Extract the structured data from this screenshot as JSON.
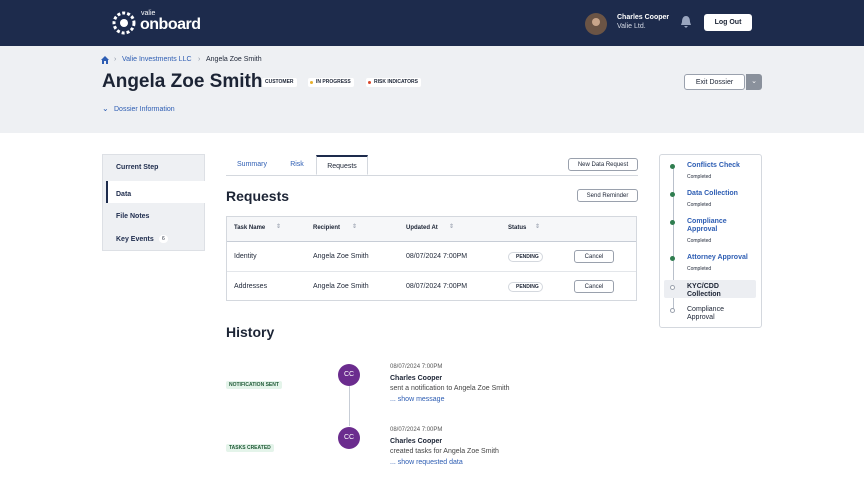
{
  "header": {
    "brand_small": "valie",
    "brand": "onboard",
    "user_name": "Charles Cooper",
    "user_org": "Valie Ltd.",
    "logout": "Log Out"
  },
  "breadcrumb": [
    "Valie Investments LLC",
    "Angela Zoe Smith"
  ],
  "title": "Angela Zoe Smith",
  "tags": [
    "CUSTOMER",
    "IN PROGRESS",
    "RISK INDICATORS"
  ],
  "exit": "Exit Dossier",
  "dossier_info": "Dossier Information",
  "side_nav": [
    {
      "label": "Current Step"
    },
    {
      "label": "Data"
    },
    {
      "label": "File Notes"
    },
    {
      "label": "Key Events",
      "count": 6
    }
  ],
  "tabs": [
    "Summary",
    "Risk",
    "Requests"
  ],
  "new_request": "New Data Request",
  "requests": {
    "title": "Requests",
    "send_reminder": "Send Reminder",
    "columns": [
      "Task Name",
      "Recipient",
      "Updated At",
      "Status"
    ],
    "rows": [
      [
        "Identity",
        "Angela Zoe Smith",
        "08/07/2024 7:00PM",
        "PENDING",
        "Cancel"
      ],
      [
        "Addresses",
        "Angela Zoe Smith",
        "08/07/2024 7:00PM",
        "PENDING",
        "Cancel"
      ]
    ]
  },
  "history": {
    "title": "History",
    "events": [
      {
        "tag": "NOTIFICATION SENT",
        "initials": "CC",
        "time": "08/07/2024 7:00PM",
        "actor": "Charles Cooper",
        "text": "sent a notification to Angela Zoe Smith",
        "link": "... show message"
      },
      {
        "tag": "TASKS CREATED",
        "initials": "CC",
        "time": "08/07/2024 7:00PM",
        "actor": "Charles Cooper",
        "text": "created tasks for Angela Zoe Smith",
        "link": "... show requested data"
      }
    ]
  },
  "steps": [
    {
      "label": "Conflicts Check",
      "status": "Completed"
    },
    {
      "label": "Data Collection",
      "status": "Completed"
    },
    {
      "label": "Compliance Approval",
      "status": "Completed"
    },
    {
      "label": "Attorney Approval",
      "status": "Completed"
    },
    {
      "label": "KYC/CDD Collection"
    },
    {
      "label": "Compliance Approval"
    }
  ]
}
